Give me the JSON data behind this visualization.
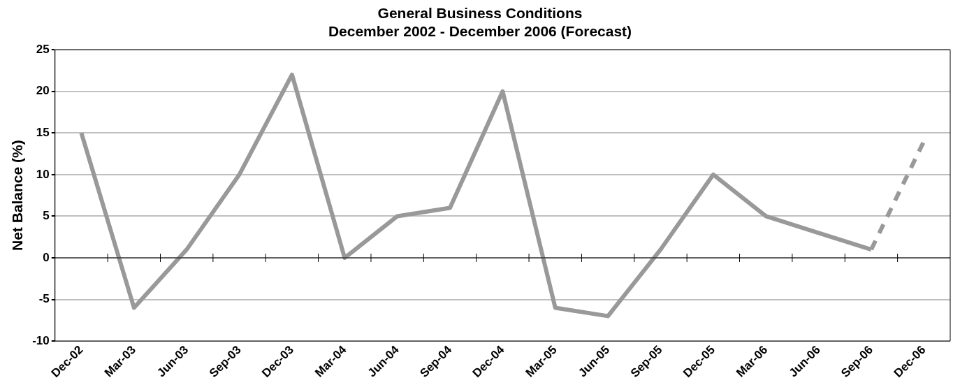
{
  "chart_data": {
    "type": "line",
    "title": "General Business Conditions",
    "subtitle": "December 2002 - December 2006 (Forecast)",
    "ylabel": "Net Balance (%)",
    "categories": [
      "Dec-02",
      "Mar-03",
      "Jun-03",
      "Sep-03",
      "Dec-03",
      "Mar-04",
      "Jun-04",
      "Sep-04",
      "Dec-04",
      "Mar-05",
      "Jun-05",
      "Sep-05",
      "Dec-05",
      "Mar-06",
      "Jun-06",
      "Sep-06",
      "Dec-06"
    ],
    "series": [
      {
        "color": "#999999",
        "line_style": "solid",
        "values": [
          15,
          -6,
          1,
          10,
          22,
          0,
          5,
          6,
          20,
          -6,
          -7,
          1,
          10,
          5,
          3,
          1,
          null
        ]
      },
      {
        "color": "#999999",
        "line_style": "dashed",
        "values": [
          null,
          null,
          null,
          null,
          null,
          null,
          null,
          null,
          null,
          null,
          null,
          null,
          null,
          null,
          null,
          1,
          14
        ]
      }
    ],
    "ylim": [
      -10,
      25
    ],
    "yticks": [
      -10,
      -5,
      0,
      5,
      10,
      15,
      20,
      25
    ],
    "grid": "y",
    "legend": false,
    "marker": "none"
  }
}
